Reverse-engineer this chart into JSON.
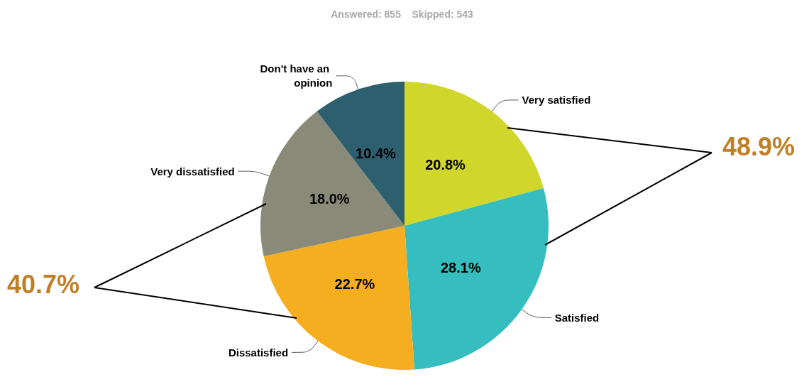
{
  "chart_data": {
    "type": "pie",
    "title": "Answered: 855    Skipped: 543",
    "categories": [
      "Very satisfied",
      "Satisfied",
      "Dissatisfied",
      "Very dissatisfied",
      "Don't have an opinion"
    ],
    "values": [
      20.8,
      28.1,
      22.7,
      18.0,
      10.4
    ],
    "value_labels": [
      "20.8%",
      "28.1%",
      "22.7%",
      "18.0%",
      "10.4%"
    ],
    "colors": [
      "#d0d62a",
      "#35bdbf",
      "#f5ae1f",
      "#8a8a78",
      "#2d5f6e"
    ],
    "annotations": [
      "48.9%",
      "40.7%"
    ],
    "legend": false
  }
}
